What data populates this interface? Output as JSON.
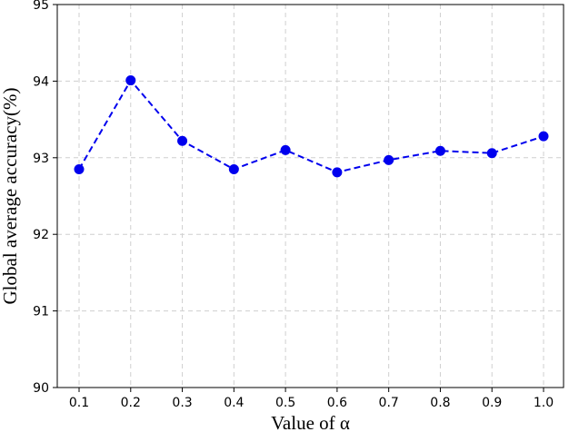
{
  "chart_data": {
    "type": "line",
    "xlabel": "Value of α",
    "ylabel": "Global average accuracy(%)",
    "x": [
      0.1,
      0.2,
      0.3,
      0.4,
      0.5,
      0.6,
      0.7,
      0.8,
      0.9,
      1.0
    ],
    "x_tick_labels": [
      "0.1",
      "0.2",
      "0.3",
      "0.4",
      "0.5",
      "0.6",
      "0.7",
      "0.8",
      "0.9",
      "1.0"
    ],
    "y_ticks": [
      90,
      91,
      92,
      93,
      94,
      95
    ],
    "ylim": [
      90,
      95
    ],
    "grid": true,
    "series": [
      {
        "values": [
          92.85,
          94.01,
          93.22,
          92.85,
          93.1,
          92.81,
          92.97,
          93.09,
          93.06,
          93.28
        ],
        "color": "#0000ee",
        "line_style": "dashed",
        "marker": "circle"
      }
    ]
  }
}
